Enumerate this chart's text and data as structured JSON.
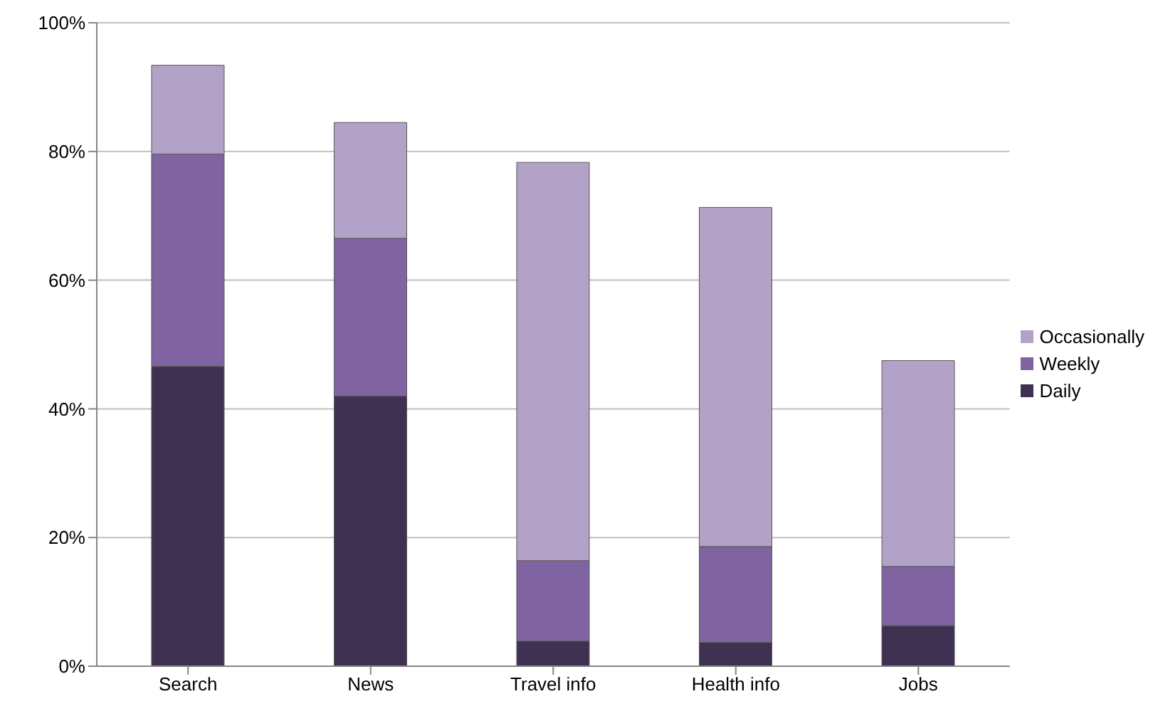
{
  "chart_data": {
    "type": "bar",
    "stacked": true,
    "categories": [
      "Search",
      "News",
      "Travel info",
      "Health info",
      "Jobs"
    ],
    "series": [
      {
        "name": "Daily",
        "color": "#3f3151",
        "values": [
          46.6,
          42.0,
          3.9,
          3.7,
          6.3
        ]
      },
      {
        "name": "Weekly",
        "color": "#8064a2",
        "values": [
          33.0,
          24.5,
          12.5,
          14.9,
          9.2
        ]
      },
      {
        "name": "Occasionally",
        "color": "#b3a2c7",
        "values": [
          13.8,
          18.0,
          61.9,
          52.7,
          32.0
        ]
      }
    ],
    "ylim": [
      0,
      100
    ],
    "yticks": [
      {
        "value": 0,
        "label": "0%"
      },
      {
        "value": 20,
        "label": "20%"
      },
      {
        "value": 40,
        "label": "40%"
      },
      {
        "value": 60,
        "label": "60%"
      },
      {
        "value": 80,
        "label": "80%"
      },
      {
        "value": 100,
        "label": "100%"
      }
    ],
    "grid": "y",
    "legend": "right"
  }
}
